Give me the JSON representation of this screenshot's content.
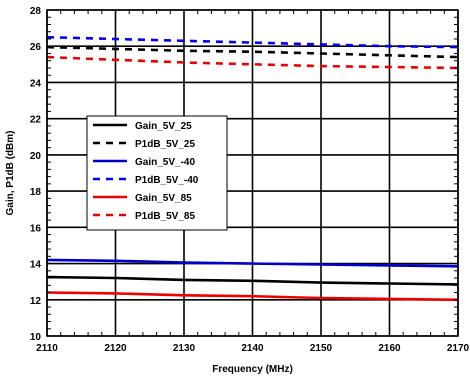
{
  "chart_data": {
    "type": "line",
    "xlabel": "Frequency (MHz)",
    "ylabel": "Gain, P1dB (dBm)",
    "xlim": [
      2110,
      2170
    ],
    "ylim": [
      10,
      28
    ],
    "xticks": [
      2110,
      2120,
      2130,
      2140,
      2150,
      2160,
      2170
    ],
    "yticks": [
      10,
      12,
      14,
      16,
      18,
      20,
      22,
      24,
      26,
      28
    ],
    "grid": true,
    "legend_position": "center-left",
    "x": [
      2110,
      2120,
      2130,
      2140,
      2150,
      2160,
      2170
    ],
    "series": [
      {
        "name": "Gain_5V_25",
        "color": "#000000",
        "dash": "solid",
        "values": [
          13.25,
          13.2,
          13.1,
          13.05,
          12.95,
          12.9,
          12.85
        ]
      },
      {
        "name": "P1dB_5V_25",
        "color": "#000000",
        "dash": "dashed",
        "values": [
          25.95,
          25.85,
          25.75,
          25.7,
          25.6,
          25.5,
          25.4
        ]
      },
      {
        "name": "Gain_5V_-40",
        "color": "#0000cc",
        "dash": "solid",
        "values": [
          14.2,
          14.15,
          14.05,
          14.0,
          13.95,
          13.9,
          13.85
        ]
      },
      {
        "name": "P1dB_5V_-40",
        "color": "#0000ff",
        "dash": "dashed",
        "values": [
          26.5,
          26.4,
          26.3,
          26.2,
          26.1,
          26.0,
          25.95
        ]
      },
      {
        "name": "Gain_5V_85",
        "color": "#ee0000",
        "dash": "solid",
        "values": [
          12.4,
          12.35,
          12.25,
          12.2,
          12.1,
          12.05,
          12.0
        ]
      },
      {
        "name": "P1dB_5V_85",
        "color": "#ee0000",
        "dash": "dashed",
        "values": [
          25.4,
          25.25,
          25.1,
          25.0,
          24.9,
          24.85,
          24.8
        ]
      }
    ]
  }
}
